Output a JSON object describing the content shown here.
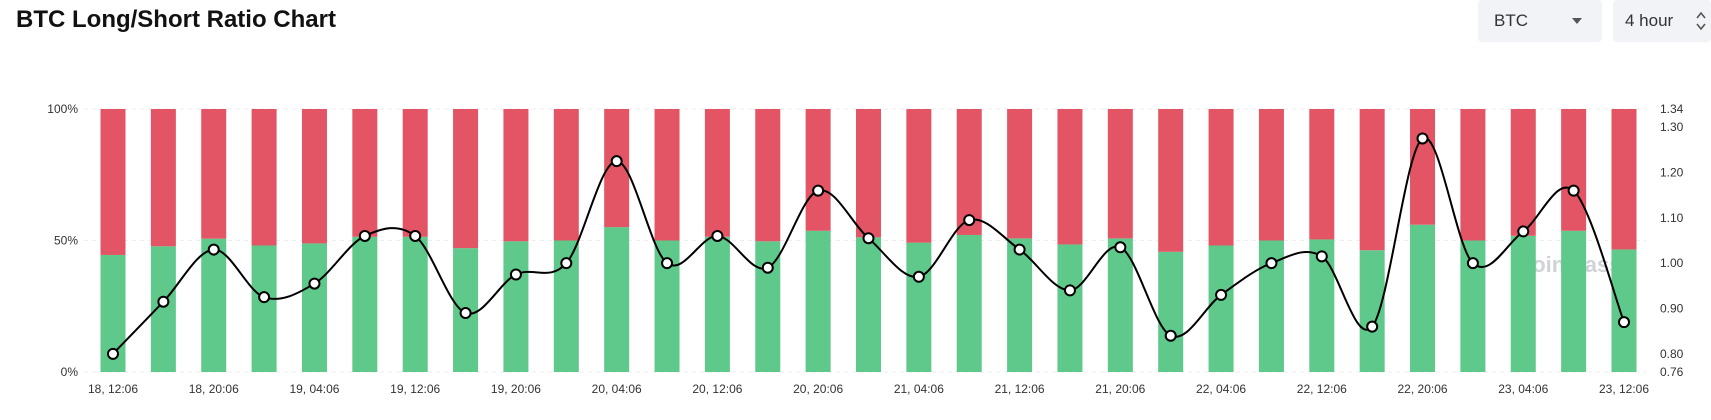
{
  "header": {
    "title": "BTC Long/Short Ratio Chart",
    "coin_select": "BTC",
    "interval_select": "4 hour"
  },
  "icons": {
    "coin_caret": "chevron-down-icon",
    "interval_updown": "up-down-icon"
  },
  "watermark": "coinglass",
  "colors": {
    "long": "#5ec98a",
    "short": "#e35565",
    "ratio_line": "#000000",
    "marker_fill": "#ffffff"
  },
  "chart_data": {
    "type": "bar",
    "stacked": true,
    "x": [
      "18, 12:06",
      "18, 16:06",
      "18, 20:06",
      "19, 00:06",
      "19, 04:06",
      "19, 08:06",
      "19, 12:06",
      "19, 16:06",
      "19, 20:06",
      "20, 00:06",
      "20, 04:06",
      "20, 08:06",
      "20, 12:06",
      "20, 16:06",
      "20, 20:06",
      "21, 00:06",
      "21, 04:06",
      "21, 08:06",
      "21, 12:06",
      "21, 16:06",
      "21, 20:06",
      "22, 00:06",
      "22, 04:06",
      "22, 08:06",
      "22, 12:06",
      "22, 16:06",
      "22, 20:06",
      "23, 00:06",
      "23, 04:06",
      "23, 08:06",
      "23, 12:06"
    ],
    "x_tick_labels": [
      "18, 12:06",
      "18, 20:06",
      "19, 04:06",
      "19, 12:06",
      "19, 20:06",
      "20, 04:06",
      "20, 12:06",
      "20, 20:06",
      "21, 04:06",
      "21, 12:06",
      "21, 20:06",
      "22, 04:06",
      "22, 12:06",
      "22, 20:06",
      "23, 04:06",
      "23, 12:06"
    ],
    "y_left_ticks": [
      "0%",
      "50%",
      "100%"
    ],
    "y_left_range": [
      0,
      100
    ],
    "y_right_ticks": [
      "0.76",
      "0.80",
      "0.90",
      "1.00",
      "1.10",
      "1.20",
      "1.30",
      "1.34"
    ],
    "y_right_range": [
      0.76,
      1.34
    ],
    "series": [
      {
        "name": "Long",
        "values": [
          44.5,
          47.8,
          50.7,
          48.1,
          48.9,
          51.4,
          51.4,
          47.1,
          49.7,
          50.0,
          55.1,
          50.0,
          51.4,
          49.7,
          53.7,
          51.2,
          49.2,
          52.1,
          50.8,
          48.5,
          50.8,
          45.7,
          48.1,
          50.0,
          50.4,
          46.3,
          56.0,
          50.0,
          51.8,
          53.7,
          46.6
        ]
      },
      {
        "name": "Short",
        "values": [
          55.5,
          52.2,
          49.3,
          51.9,
          51.1,
          48.6,
          48.6,
          52.9,
          50.3,
          50.0,
          44.9,
          50.0,
          48.6,
          50.3,
          46.3,
          48.8,
          50.8,
          47.9,
          49.2,
          51.5,
          49.2,
          54.3,
          51.9,
          50.0,
          49.6,
          53.7,
          44.0,
          50.0,
          48.2,
          46.3,
          53.4
        ]
      },
      {
        "name": "Long/Short Ratio",
        "axis": "right",
        "type": "line",
        "values": [
          0.8,
          0.915,
          1.03,
          0.925,
          0.955,
          1.06,
          1.06,
          0.89,
          0.975,
          1.0,
          1.225,
          1.0,
          1.06,
          0.99,
          1.16,
          1.055,
          0.97,
          1.095,
          1.03,
          0.94,
          1.035,
          0.84,
          0.93,
          1.0,
          1.015,
          0.86,
          1.275,
          1.0,
          1.07,
          1.16,
          0.87
        ]
      }
    ],
    "grid": true,
    "legend": "none"
  }
}
